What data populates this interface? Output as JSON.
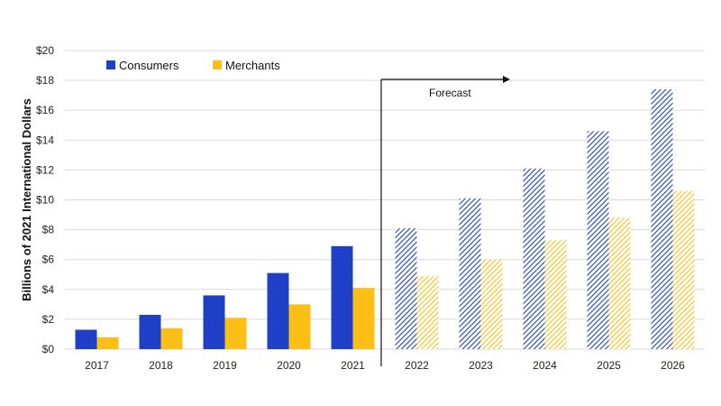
{
  "chart_data": {
    "type": "bar",
    "title": "",
    "xlabel": "",
    "ylabel": "Billions of 2021 International Dollars",
    "ylim": [
      0,
      20
    ],
    "yticks": [
      "$0",
      "$2",
      "$4",
      "$6",
      "$8",
      "$10",
      "$12",
      "$14",
      "$16",
      "$18",
      "$20"
    ],
    "ytick_values": [
      0,
      2,
      4,
      6,
      8,
      10,
      12,
      14,
      16,
      18,
      20
    ],
    "grid": true,
    "legend_position": "top-left",
    "categories": [
      "2017",
      "2018",
      "2019",
      "2020",
      "2021",
      "2022",
      "2023",
      "2024",
      "2025",
      "2026"
    ],
    "series": [
      {
        "name": "Consumers",
        "color": "#1e3fc8",
        "values": [
          1.3,
          2.3,
          3.6,
          5.1,
          6.9,
          8.1,
          10.1,
          12.1,
          14.6,
          17.4
        ]
      },
      {
        "name": "Merchants",
        "color": "#fbbf16",
        "values": [
          0.8,
          1.4,
          2.1,
          3.0,
          4.1,
          4.9,
          6.0,
          7.3,
          8.8,
          10.6
        ]
      }
    ],
    "forecast": {
      "label": "Forecast",
      "start_category": "2022",
      "style": "hatched"
    }
  }
}
